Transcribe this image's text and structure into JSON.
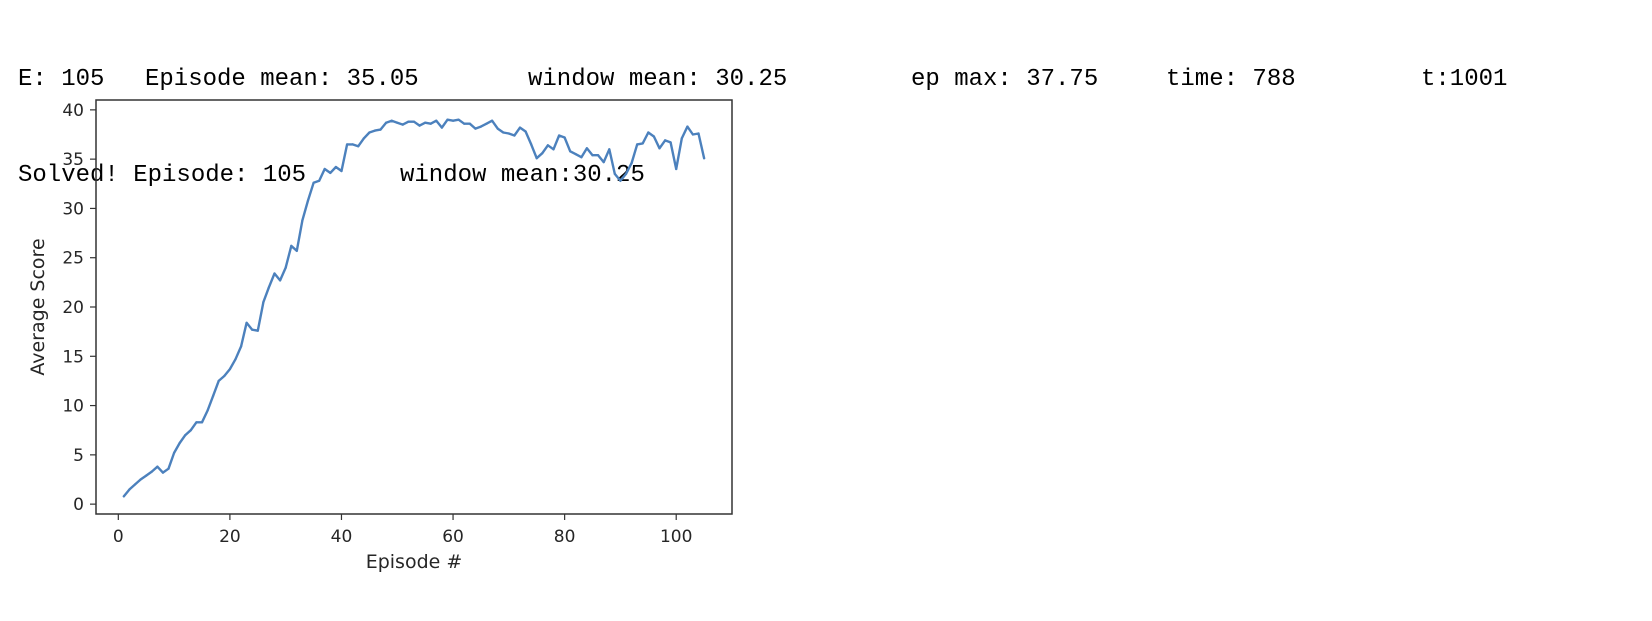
{
  "console": {
    "line1": {
      "episode": "E: 105",
      "episode_mean": "Episode mean: 35.05",
      "window_mean": "window mean: 30.25",
      "ep_max": "ep max: 37.75",
      "time": "time: 788",
      "t": "t:1001"
    },
    "line2": {
      "solved": "Solved! Episode: 105",
      "window_mean": "window mean:30.25"
    }
  },
  "chart_data": {
    "type": "line",
    "xlabel": "Episode #",
    "ylabel": "Average Score",
    "xlim": [
      -4,
      110
    ],
    "ylim": [
      -1,
      41
    ],
    "xticks": [
      0,
      20,
      40,
      60,
      80,
      100
    ],
    "yticks": [
      0,
      5,
      10,
      15,
      20,
      25,
      30,
      35,
      40
    ],
    "grid": false,
    "color": "#4c81bd",
    "series": [
      {
        "x": [
          1,
          2,
          3,
          4,
          5,
          6,
          7,
          8,
          9,
          10,
          11,
          12,
          13,
          14,
          15,
          16,
          17,
          18,
          19,
          20,
          21,
          22,
          23,
          24,
          25,
          26,
          27,
          28,
          29,
          30,
          31,
          32,
          33,
          34,
          35,
          36,
          37,
          38,
          39,
          40,
          41,
          42,
          43,
          44,
          45,
          46,
          47,
          48,
          49,
          50,
          51,
          52,
          53,
          54,
          55,
          56,
          57,
          58,
          59,
          60,
          61,
          62,
          63,
          64,
          65,
          66,
          67,
          68,
          69,
          70,
          71,
          72,
          73,
          74,
          75,
          76,
          77,
          78,
          79,
          80,
          81,
          82,
          83,
          84,
          85,
          86,
          87,
          88,
          89,
          90,
          91,
          92,
          93,
          94,
          95,
          96,
          97,
          98,
          99,
          100,
          101,
          102,
          103,
          104,
          105
        ],
        "values": [
          0.8,
          1.5,
          2.0,
          2.5,
          2.9,
          3.3,
          3.8,
          3.2,
          3.6,
          5.2,
          6.2,
          7.0,
          7.5,
          8.3,
          8.3,
          9.5,
          11.0,
          12.5,
          13.0,
          13.7,
          14.7,
          16.0,
          18.4,
          17.7,
          17.6,
          20.5,
          22.0,
          23.4,
          22.7,
          24.0,
          26.2,
          25.7,
          28.8,
          30.8,
          32.6,
          32.8,
          34.0,
          33.6,
          34.2,
          33.8,
          36.5,
          36.5,
          36.3,
          37.1,
          37.7,
          37.9,
          38.0,
          38.7,
          38.9,
          38.7,
          38.5,
          38.8,
          38.8,
          38.4,
          38.7,
          38.6,
          38.9,
          38.2,
          39.0,
          38.9,
          39.0,
          38.6,
          38.6,
          38.1,
          38.3,
          38.6,
          38.9,
          38.1,
          37.7,
          37.6,
          37.4,
          38.2,
          37.8,
          36.5,
          35.1,
          35.6,
          36.4,
          36.0,
          37.4,
          37.2,
          35.8,
          35.5,
          35.2,
          36.1,
          35.4,
          35.4,
          34.7,
          36.0,
          33.5,
          32.8,
          33.5,
          34.6,
          36.5,
          36.6,
          37.7,
          37.3,
          36.1,
          36.9,
          36.7,
          34.0,
          37.1,
          38.3,
          37.5,
          37.6,
          35.1
        ]
      }
    ]
  }
}
